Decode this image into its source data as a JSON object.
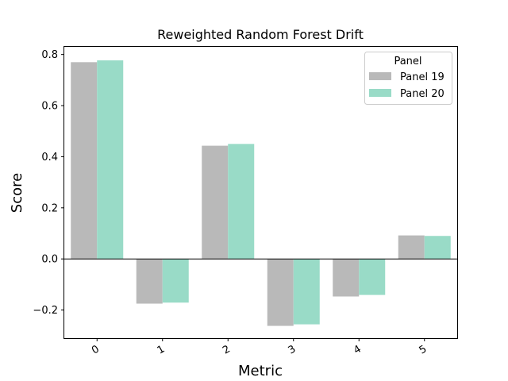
{
  "chart_data": {
    "type": "bar",
    "title": "Reweighted Random Forest Drift",
    "xlabel": "Metric",
    "ylabel": "Score",
    "categories": [
      "0",
      "1",
      "2",
      "3",
      "4",
      "5"
    ],
    "series": [
      {
        "name": "Panel 19",
        "color": "#b9b9b9",
        "values": [
          0.77,
          -0.175,
          0.443,
          -0.262,
          -0.147,
          0.092
        ]
      },
      {
        "name": "Panel 20",
        "color": "#99dbc7",
        "values": [
          0.777,
          -0.171,
          0.45,
          -0.256,
          -0.141,
          0.09
        ]
      }
    ],
    "ylim": [
      -0.31,
      0.83
    ],
    "yticks": [
      -0.2,
      0.0,
      0.2,
      0.4,
      0.6,
      0.8
    ],
    "ytick_labels": [
      "−0.2",
      "0.0",
      "0.2",
      "0.4",
      "0.6",
      "0.8"
    ],
    "legend": {
      "title": "Panel",
      "placement": "top-right"
    },
    "grid": false
  }
}
